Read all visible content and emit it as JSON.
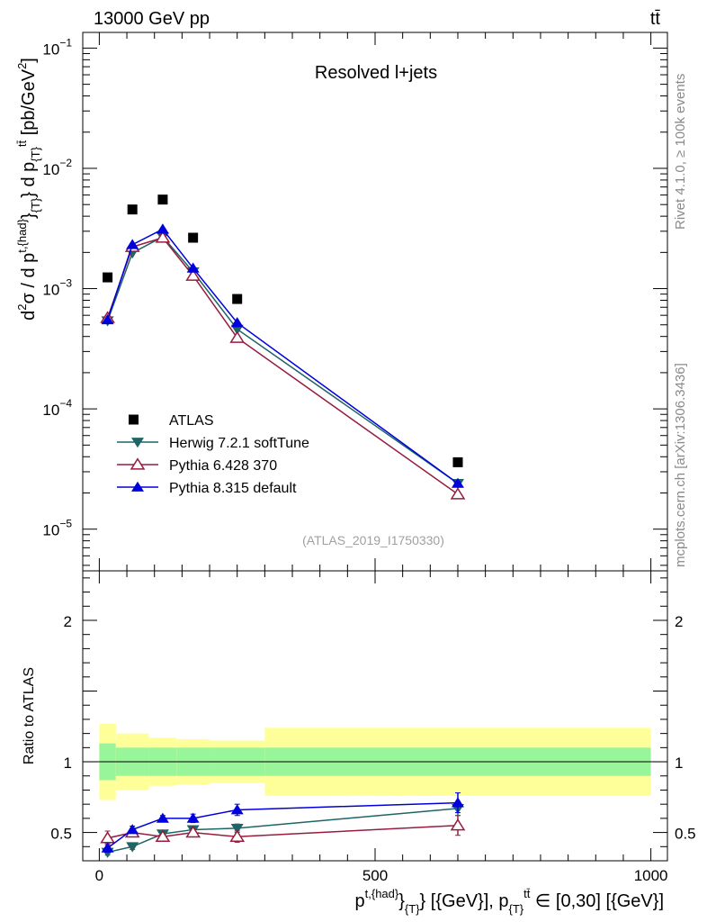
{
  "header": {
    "energy_label": "13000 GeV pp",
    "process_label": "tt̄",
    "side_rivet": "Rivet 4.1.0, ≥ 100k events",
    "side_mcplots": "mcplots.cern.ch [arXiv:1306.3436]"
  },
  "chart_data": {
    "type": "scatter",
    "title": "Resolved l+jets",
    "watermark": "(ATLAS_2019_I1750330)",
    "xlabel": "p^{t,{had}}_{T} [{GeV}], p_{T}^{tt̄} ∈ [0,30] [{GeV}]",
    "xlabel_parts": {
      "p": "p",
      "sup1": "t,{had}",
      "mid1": "}",
      "sub1": "{T}",
      "text1": "} [{GeV}], p",
      "sub2": "{T}",
      "sup2": "tt̄",
      "text2": " ∈ [0,30] [{GeV}]"
    },
    "ylabel": "d²σ / d p^{t,{had}}_{T} d p_{T}^{tt̄} [pb/GeV²]",
    "ylabel_parts": {
      "a": "d",
      "a_sup": "2",
      "b": "σ / d p",
      "b_sup": "t,{had}",
      "c": "}",
      "c_sub": "{T}",
      "d": "} d p",
      "d_sub": "{T}",
      "d_sup": "tt̄",
      "e": " [pb/GeV",
      "e_sup": "2",
      "f": "]"
    },
    "xlim": [
      -30,
      1030
    ],
    "ylim_log": [
      4.5e-06,
      0.135
    ],
    "ratio_ylim": [
      0.3,
      2.35
    ],
    "ratio_ylabel": "Ratio to ATLAS",
    "x_ticks": [
      {
        "value": 0,
        "label": "0"
      },
      {
        "value": 500,
        "label": "500"
      },
      {
        "value": 1000,
        "label": "1000"
      }
    ],
    "y_ticks_log": [
      {
        "exp": -1,
        "label": "10",
        "label_exp": "−1"
      },
      {
        "exp": -2,
        "label": "10",
        "label_exp": "−2"
      },
      {
        "exp": -3,
        "label": "10",
        "label_exp": "−3"
      },
      {
        "exp": -4,
        "label": "10",
        "label_exp": "−4"
      },
      {
        "exp": -5,
        "label": "10",
        "label_exp": "−5"
      }
    ],
    "ratio_ticks": [
      {
        "value": 0.5,
        "label": "0.5"
      },
      {
        "value": 1,
        "label": "1"
      },
      {
        "value": 2,
        "label": "2"
      }
    ],
    "data": {
      "name": "ATLAS",
      "x": [
        15,
        60,
        115,
        170,
        250,
        650
      ],
      "y": [
        0.00124,
        0.00455,
        0.0055,
        0.00265,
        0.00082,
        3.6e-05
      ]
    },
    "bands": {
      "edges": [
        0,
        30,
        90,
        140,
        200,
        300,
        1000
      ],
      "inner": [
        0.13,
        0.1,
        0.1,
        0.1,
        0.1,
        0.1
      ],
      "outer": [
        0.27,
        0.2,
        0.17,
        0.16,
        0.15,
        0.24
      ]
    },
    "series": [
      {
        "name": "Herwig 7.2.1 softTune",
        "color": "#1f6466",
        "marker": "triangle-down",
        "x": [
          15,
          60,
          115,
          170,
          250,
          650
        ],
        "y": [
          0.00054,
          0.00198,
          0.0027,
          0.00138,
          0.00046,
          2.4e-05
        ],
        "ratio": [
          0.36,
          0.4,
          0.49,
          0.52,
          0.53,
          0.67
        ],
        "ratio_err": [
          0.02,
          0.02,
          0.015,
          0.02,
          0.03,
          0.05
        ]
      },
      {
        "name": "Pythia 6.428 370",
        "color": "#971c3e",
        "marker": "triangle-up-open",
        "x": [
          15,
          60,
          115,
          170,
          250,
          650
        ],
        "y": [
          0.00057,
          0.00222,
          0.00265,
          0.00128,
          0.00039,
          1.95e-05
        ],
        "ratio": [
          0.46,
          0.5,
          0.47,
          0.5,
          0.47,
          0.55
        ],
        "ratio_err": [
          0.05,
          0.03,
          0.02,
          0.03,
          0.04,
          0.07
        ]
      },
      {
        "name": "Pythia 8.315 default",
        "color": "#0000dc",
        "marker": "triangle-up",
        "x": [
          15,
          60,
          115,
          170,
          250,
          650
        ],
        "y": [
          0.00055,
          0.00232,
          0.00312,
          0.00148,
          0.00052,
          2.4e-05
        ],
        "ratio": [
          0.39,
          0.52,
          0.6,
          0.6,
          0.66,
          0.71
        ],
        "ratio_err": [
          0.03,
          0.025,
          0.02,
          0.03,
          0.04,
          0.07
        ]
      }
    ]
  }
}
